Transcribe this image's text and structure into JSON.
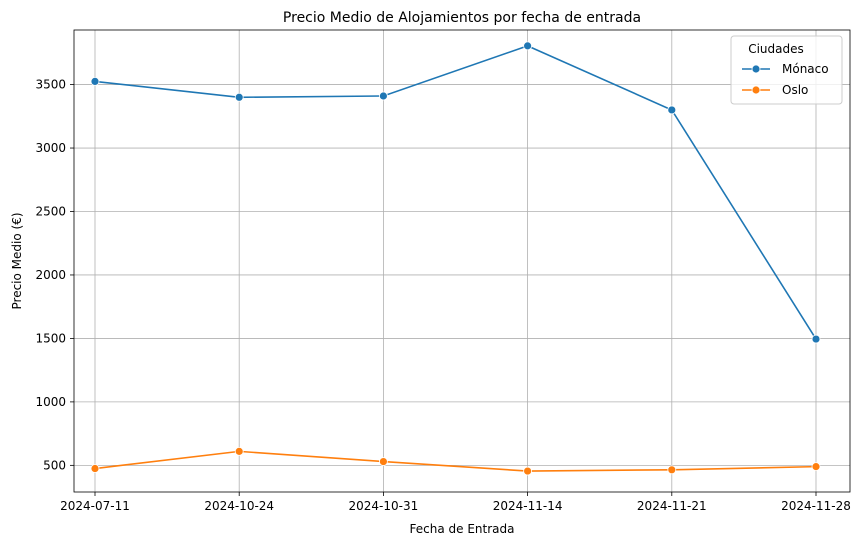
{
  "chart_data": {
    "type": "line",
    "title": "Precio Medio de Alojamientos por fecha de entrada",
    "xlabel": "Fecha de Entrada",
    "ylabel": "Precio Medio (€)",
    "categories": [
      "2024-07-11",
      "2024-10-24",
      "2024-10-31",
      "2024-11-14",
      "2024-11-21",
      "2024-11-28"
    ],
    "ylim": [
      290,
      3930
    ],
    "yticks": [
      500,
      1000,
      1500,
      2000,
      2500,
      3000,
      3500
    ],
    "grid": true,
    "legend": {
      "title": "Ciudades",
      "position": "top-right"
    },
    "series": [
      {
        "name": "Mónaco",
        "color": "#1f77b4",
        "values": [
          3525,
          3400,
          3410,
          3805,
          3300,
          1495
        ]
      },
      {
        "name": "Oslo",
        "color": "#ff7f0e",
        "values": [
          475,
          610,
          530,
          455,
          465,
          490
        ]
      }
    ]
  }
}
